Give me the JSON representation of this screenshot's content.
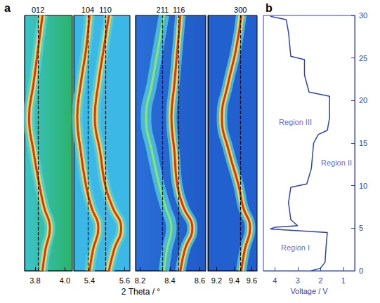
{
  "chart_data": [
    {
      "type": "line",
      "label": "a",
      "xlabel": "2 Theta / °",
      "ylim": [
        0,
        30
      ],
      "tick_labels": "x",
      "subplots": [
        {
          "xlim": [
            3.73,
            4.05
          ],
          "xticks": [
            3.8,
            {
              "value": 4,
              "label": "4.0"
            }
          ],
          "series": [
            {
              "name": "012",
              "reference": 3.82,
              "color": "#e0301e",
              "values": [
                [
                  3.85,
                  0
                ],
                [
                  3.87,
                  2.5
                ],
                [
                  3.9,
                  5
                ],
                [
                  3.86,
                  7.5
                ],
                [
                  3.83,
                  10
                ],
                [
                  3.79,
                  14
                ],
                [
                  3.76,
                  18
                ],
                [
                  3.79,
                  22
                ],
                [
                  3.82,
                  26
                ],
                [
                  3.85,
                  30
                ]
              ]
            }
          ]
        },
        {
          "xlim": [
            5.31,
            5.63
          ],
          "xticks": [
            5.4,
            5.6
          ],
          "series": [
            {
              "name": "104",
              "reference": 5.39,
              "color": "#e0301e",
              "values": [
                [
                  5.4,
                  0
                ],
                [
                  5.42,
                  2.5
                ],
                [
                  5.45,
                  5
                ],
                [
                  5.41,
                  7.5
                ],
                [
                  5.38,
                  10
                ],
                [
                  5.35,
                  14
                ],
                [
                  5.33,
                  18
                ],
                [
                  5.35,
                  22
                ],
                [
                  5.38,
                  26
                ],
                [
                  5.4,
                  30
                ]
              ]
            },
            {
              "name": "110",
              "reference": 5.49,
              "color": "#e0301e",
              "values": [
                [
                  5.51,
                  0
                ],
                [
                  5.54,
                  2.5
                ],
                [
                  5.58,
                  5
                ],
                [
                  5.53,
                  7.5
                ],
                [
                  5.49,
                  10
                ],
                [
                  5.46,
                  14
                ],
                [
                  5.43,
                  18
                ],
                [
                  5.45,
                  22
                ],
                [
                  5.48,
                  26
                ],
                [
                  5.51,
                  30
                ]
              ]
            }
          ]
        },
        {
          "xlim": [
            8.17,
            8.64
          ],
          "xticks": [
            8.2,
            8.4,
            8.6
          ],
          "series": [
            {
              "name": "211",
              "reference": 8.35,
              "color": "#8fe36a",
              "values": [
                [
                  8.36,
                  0
                ],
                [
                  8.38,
                  2.5
                ],
                [
                  8.41,
                  5
                ],
                [
                  8.37,
                  7.5
                ],
                [
                  8.33,
                  10
                ],
                [
                  8.28,
                  14
                ],
                [
                  8.24,
                  18
                ],
                [
                  8.28,
                  22
                ],
                [
                  8.32,
                  26
                ],
                [
                  8.36,
                  30
                ]
              ]
            },
            {
              "name": "116",
              "reference": 8.46,
              "color": "#e0301e",
              "values": [
                [
                  8.47,
                  0
                ],
                [
                  8.5,
                  2.5
                ],
                [
                  8.55,
                  5
                ],
                [
                  8.49,
                  7.5
                ],
                [
                  8.45,
                  10
                ],
                [
                  8.43,
                  14
                ],
                [
                  8.41,
                  18
                ],
                [
                  8.43,
                  22
                ],
                [
                  8.45,
                  26
                ],
                [
                  8.47,
                  30
                ]
              ]
            }
          ]
        },
        {
          "xlim": [
            9.1,
            9.66
          ],
          "xticks": [
            9.2,
            9.4,
            9.6
          ],
          "series": [
            {
              "name": "300",
              "reference": 9.47,
              "color": "#e0301e",
              "values": [
                [
                  9.48,
                  0
                ],
                [
                  9.52,
                  2.5
                ],
                [
                  9.58,
                  5
                ],
                [
                  9.5,
                  7.5
                ],
                [
                  9.45,
                  10
                ],
                [
                  9.34,
                  14
                ],
                [
                  9.26,
                  18
                ],
                [
                  9.33,
                  22
                ],
                [
                  9.42,
                  26
                ],
                [
                  9.48,
                  30
                ]
              ]
            }
          ]
        }
      ]
    },
    {
      "type": "line",
      "label": "b",
      "xlabel": "Voltage / V",
      "xlim": [
        4.5,
        0.5
      ],
      "xticks": [
        4,
        3,
        2,
        1
      ],
      "ylim": [
        0,
        30
      ],
      "yticks": [
        0,
        5,
        10,
        15,
        20,
        25,
        30
      ],
      "color": "#2f3fbf",
      "series": [
        {
          "values": [
            [
              2.4,
              0
            ],
            [
              2.0,
              0.3
            ],
            [
              1.8,
              1
            ],
            [
              1.75,
              3
            ],
            [
              1.7,
              4.5
            ],
            [
              4.2,
              4.9
            ],
            [
              4.0,
              5.1
            ],
            [
              3.0,
              5.3
            ],
            [
              3.3,
              6
            ],
            [
              3.4,
              8
            ],
            [
              3.3,
              9.8
            ],
            [
              2.6,
              10.2
            ],
            [
              2.4,
              12
            ],
            [
              2.3,
              15
            ],
            [
              2.1,
              16
            ],
            [
              1.7,
              16.5
            ],
            [
              1.6,
              18
            ],
            [
              1.6,
              20.5
            ],
            [
              2.5,
              21
            ],
            [
              2.7,
              23
            ],
            [
              2.7,
              24.8
            ],
            [
              3.3,
              25.2
            ],
            [
              3.4,
              28
            ],
            [
              3.5,
              29.5
            ],
            [
              4.2,
              29.9
            ]
          ]
        }
      ],
      "annotations": [
        {
          "text": "Region I",
          "x": 3.1,
          "y": 2.7
        },
        {
          "text": "Region II",
          "x": 1.3,
          "y": 12.7
        },
        {
          "text": "Region III",
          "x": 3.1,
          "y": 17.5
        }
      ]
    }
  ]
}
